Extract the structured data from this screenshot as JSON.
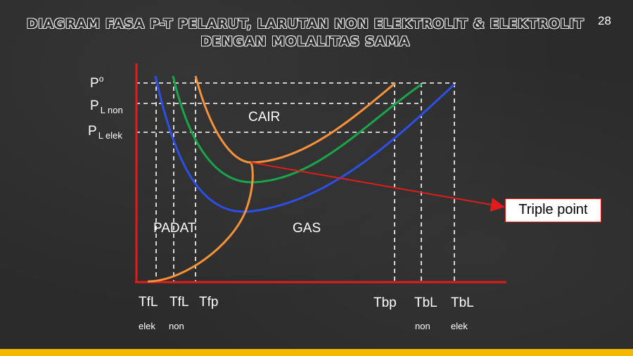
{
  "title": {
    "line1": "DIAGRAM FASA P-T PELARUT, LARUTAN NON ELEKTROLIT & ELEKTROLIT",
    "line2": "DENGAN MOLALITAS SAMA"
  },
  "page_number": "28",
  "y_labels": {
    "p0": {
      "main": "P",
      "sup": "o"
    },
    "pl_non": {
      "main": "P",
      "sub": "L non"
    },
    "pl_elek": {
      "main": "P",
      "sub": "L elek"
    }
  },
  "x_labels": {
    "tfl_elek": {
      "main": "TfL",
      "sub": "elek"
    },
    "tfl_non": {
      "main": "TfL",
      "sub": "non"
    },
    "tfp": {
      "main": "Tfp"
    },
    "tbp": {
      "main": "Tbp"
    },
    "tbl_non": {
      "main": "TbL",
      "sub": "non"
    },
    "tbl_elek": {
      "main": "TbL",
      "sub": "elek"
    }
  },
  "regions": {
    "cair": "CAIR",
    "padat": "PADAT",
    "gas": "GAS"
  },
  "callout": "Triple point",
  "colors": {
    "background": "#2b2b2b",
    "axis": "#e21b1b",
    "curve_pelarut": "#f7923a",
    "curve_non_elektrolit": "#19a64a",
    "curve_elektrolit": "#2c4fe8",
    "arrow": "#e21b1b",
    "accent_bar": "#f5b800"
  }
}
